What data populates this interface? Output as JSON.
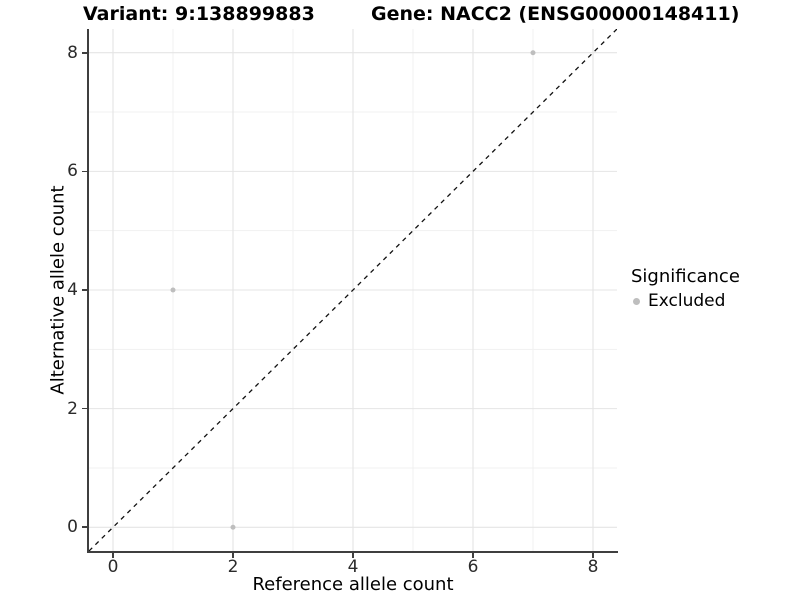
{
  "chart_data": {
    "type": "scatter",
    "titles": {
      "left": "Variant: 9:138899883",
      "right": "Gene: NACC2 (ENSG00000148411)"
    },
    "xlabel": "Reference allele count",
    "ylabel": "Alternative allele count",
    "xlim": [
      -0.4,
      8.4
    ],
    "ylim": [
      -0.4,
      8.4
    ],
    "x_ticks": [
      0,
      2,
      4,
      6,
      8
    ],
    "y_ticks": [
      0,
      2,
      4,
      6,
      8
    ],
    "x_minor_ticks": [
      1,
      3,
      5,
      7
    ],
    "y_minor_ticks": [
      1,
      3,
      5,
      7
    ],
    "grid": "major+minor",
    "legend": {
      "title": "Significance",
      "position": "right",
      "items": [
        {
          "label": "Excluded",
          "color": "#bebebe"
        }
      ]
    },
    "series": [
      {
        "name": "Excluded",
        "color": "#bebebe",
        "points": [
          {
            "x": 7,
            "y": 8
          },
          {
            "x": 1,
            "y": 4
          },
          {
            "x": 2,
            "y": 0
          }
        ]
      }
    ],
    "reference_line": {
      "type": "identity y=x",
      "style": "dashed",
      "color": "#111111",
      "from": [
        -0.4,
        -0.4
      ],
      "to": [
        8.4,
        8.4
      ]
    }
  },
  "colors": {
    "point_excluded": "#bebebe",
    "grid_major": "#e4e4e4",
    "grid_minor": "#f1f1f1",
    "axis_line": "#3f3f3f",
    "tick_text": "#2b2b2b"
  }
}
